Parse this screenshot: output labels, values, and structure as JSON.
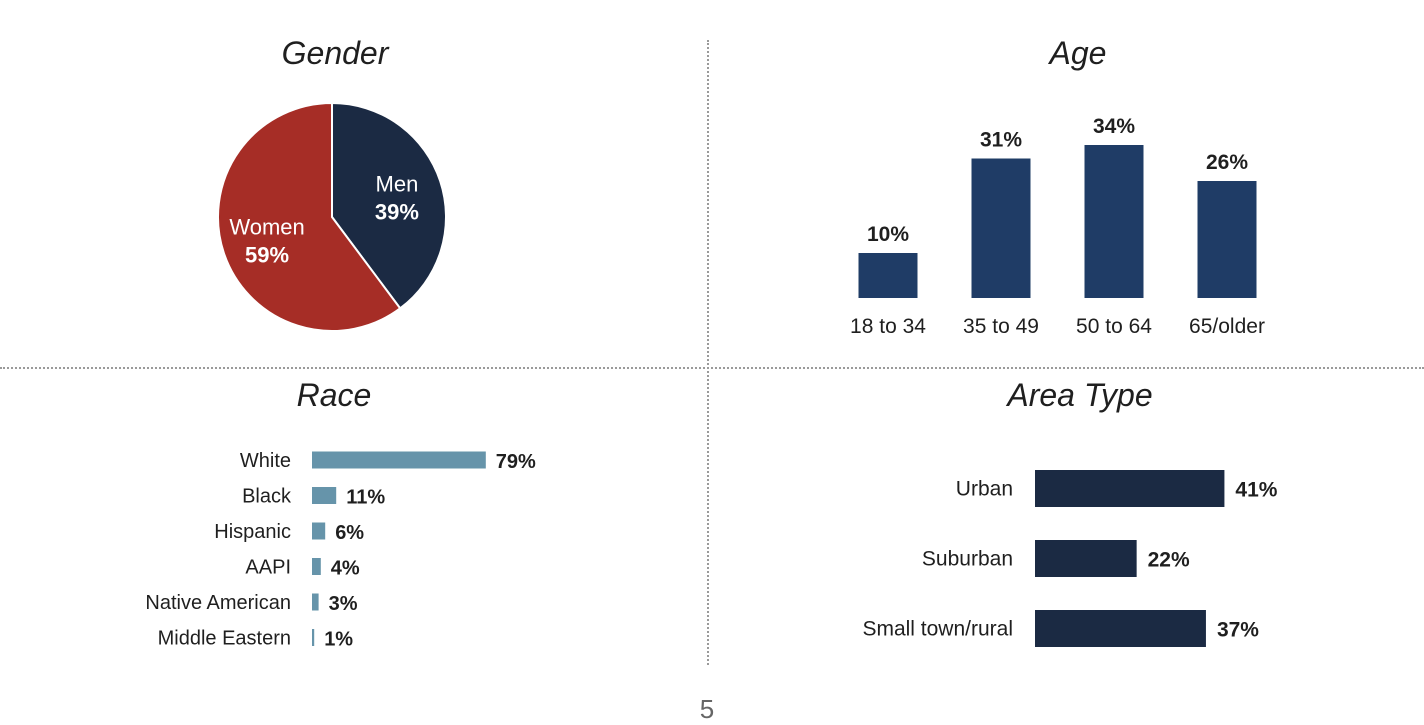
{
  "page_number": "5",
  "colors": {
    "women": "#a62d26",
    "men": "#1b2a43",
    "age_bar": "#1f3c66",
    "race_bar": "#6694aa",
    "area_bar": "#1b2a43"
  },
  "chart_data": [
    {
      "type": "pie",
      "title": "Gender",
      "slices": [
        {
          "label": "Men",
          "value": 39,
          "value_label": "39%"
        },
        {
          "label": "Women",
          "value": 59,
          "value_label": "59%"
        }
      ]
    },
    {
      "type": "bar",
      "title": "Age",
      "categories": [
        "18 to 34",
        "35 to 49",
        "50 to 64",
        "65/older"
      ],
      "values": [
        10,
        31,
        34,
        26
      ],
      "value_labels": [
        "10%",
        "31%",
        "34%",
        "26%"
      ]
    },
    {
      "type": "bar",
      "orientation": "horizontal",
      "title": "Race",
      "categories": [
        "White",
        "Black",
        "Hispanic",
        "AAPI",
        "Native American",
        "Middle Eastern"
      ],
      "values": [
        79,
        11,
        6,
        4,
        3,
        1
      ],
      "value_labels": [
        "79%",
        "11%",
        "6%",
        "4%",
        "3%",
        "1%"
      ]
    },
    {
      "type": "bar",
      "orientation": "horizontal",
      "title": "Area Type",
      "categories": [
        "Urban",
        "Suburban",
        "Small town/rural"
      ],
      "values": [
        41,
        22,
        37
      ],
      "value_labels": [
        "41%",
        "22%",
        "37%"
      ]
    }
  ]
}
